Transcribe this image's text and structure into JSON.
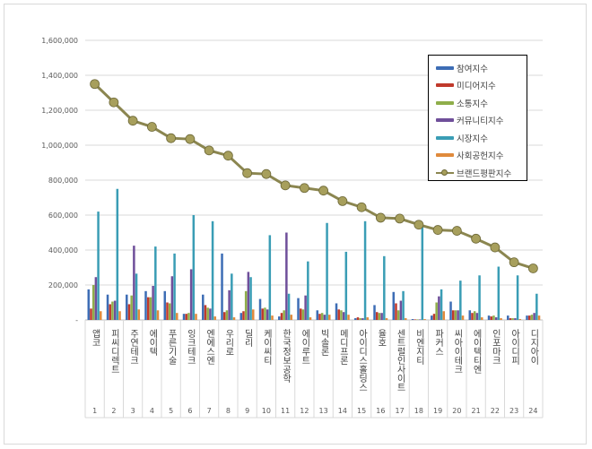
{
  "chart_data": {
    "type": "bar",
    "ylim": [
      0,
      1600000
    ],
    "yticks": [
      "-",
      "200,000",
      "400,000",
      "600,000",
      "800,000",
      "1,000,000",
      "1,200,000",
      "1,400,000",
      "1,600,000"
    ],
    "grid": true,
    "legend_placement": "top-right",
    "categories": [
      "앱코",
      "피씨디렉트",
      "주연테크",
      "에이텍",
      "푸른기술",
      "잉크테크",
      "엔에스엔",
      "우리로",
      "딜리",
      "케이씨티",
      "한국정보공학",
      "에이루트",
      "빅솔론",
      "메디프론",
      "아이디스홀딩스",
      "율호",
      "센트럴인사이트",
      "비엔지티",
      "파커스",
      "씨아이테크",
      "에이텍티엔",
      "인포마크",
      "아이디피",
      "디지아이"
    ],
    "index_labels": [
      "1",
      "2",
      "3",
      "4",
      "5",
      "6",
      "7",
      "8",
      "9",
      "10",
      "11",
      "12",
      "13",
      "14",
      "15",
      "16",
      "17",
      "18",
      "19",
      "20",
      "21",
      "22",
      "23",
      "24"
    ],
    "series": [
      {
        "name": "참여지수",
        "type": "bar",
        "color": "#3d6db5",
        "values": [
          175000,
          145000,
          145000,
          165000,
          165000,
          35000,
          145000,
          380000,
          40000,
          120000,
          20000,
          125000,
          55000,
          95000,
          10000,
          85000,
          160000,
          5000,
          25000,
          105000,
          55000,
          25000,
          25000,
          25000
        ]
      },
      {
        "name": "미디어지수",
        "type": "bar",
        "color": "#c0392b",
        "values": [
          65000,
          90000,
          90000,
          130000,
          100000,
          35000,
          85000,
          45000,
          50000,
          65000,
          40000,
          65000,
          35000,
          60000,
          15000,
          45000,
          95000,
          3000,
          35000,
          55000,
          40000,
          20000,
          10000,
          25000
        ]
      },
      {
        "name": "소통지수",
        "type": "bar",
        "color": "#8fae4a",
        "values": [
          200000,
          105000,
          140000,
          130000,
          95000,
          40000,
          70000,
          55000,
          165000,
          70000,
          55000,
          60000,
          40000,
          55000,
          10000,
          40000,
          55000,
          3000,
          100000,
          55000,
          50000,
          25000,
          10000,
          30000
        ]
      },
      {
        "name": "커뮤니티지수",
        "type": "bar",
        "color": "#6f4f9a",
        "values": [
          245000,
          110000,
          425000,
          195000,
          250000,
          290000,
          65000,
          170000,
          275000,
          60000,
          500000,
          140000,
          30000,
          45000,
          10000,
          40000,
          110000,
          3000,
          135000,
          55000,
          40000,
          15000,
          10000,
          40000
        ]
      },
      {
        "name": "시장지수",
        "type": "bar",
        "color": "#3a9db5",
        "values": [
          620000,
          750000,
          265000,
          420000,
          380000,
          600000,
          565000,
          265000,
          245000,
          485000,
          150000,
          335000,
          555000,
          390000,
          565000,
          365000,
          165000,
          540000,
          175000,
          225000,
          255000,
          305000,
          255000,
          150000
        ]
      },
      {
        "name": "사회공헌지수",
        "type": "bar",
        "color": "#e08a3c",
        "values": [
          50000,
          50000,
          60000,
          55000,
          40000,
          35000,
          20000,
          15000,
          60000,
          25000,
          30000,
          15000,
          30000,
          30000,
          15000,
          10000,
          10000,
          5000,
          50000,
          25000,
          15000,
          10000,
          5000,
          25000
        ]
      },
      {
        "name": "브랜드평판지수",
        "type": "line",
        "color": "#8b8650",
        "values": [
          1350000,
          1245000,
          1140000,
          1105000,
          1040000,
          1035000,
          970000,
          940000,
          840000,
          835000,
          770000,
          755000,
          740000,
          680000,
          645000,
          585000,
          580000,
          545000,
          515000,
          510000,
          465000,
          415000,
          330000,
          295000
        ]
      }
    ]
  }
}
